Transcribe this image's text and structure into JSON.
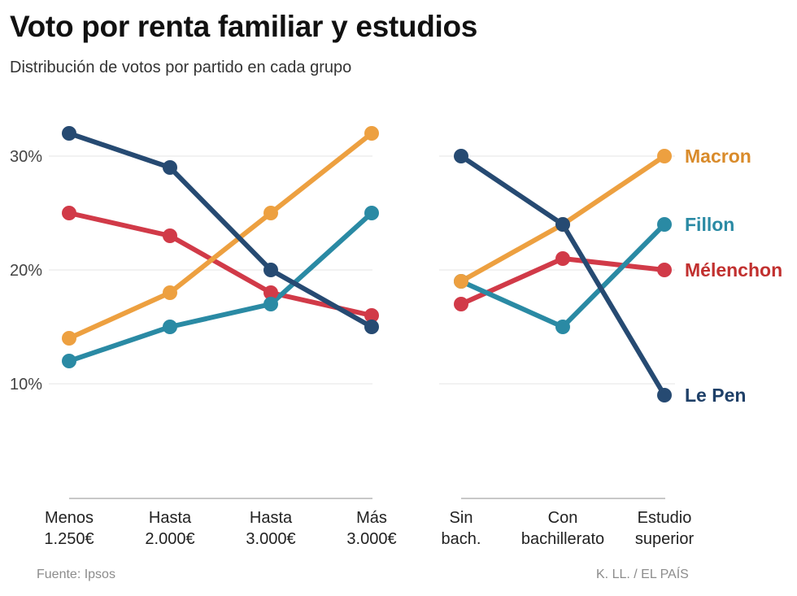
{
  "header": {
    "title": "Voto por renta familiar y estudios",
    "subtitle": "Distribución de votos por partido en cada grupo"
  },
  "footer": {
    "source": "Fuente: Ipsos",
    "credit": "K. LL. / EL PAÍS"
  },
  "chart_data": [
    {
      "type": "line",
      "title": "Renta familiar",
      "categories": [
        [
          "Menos",
          "1.250€"
        ],
        [
          "Hasta",
          "2.000€"
        ],
        [
          "Hasta",
          "3.000€"
        ],
        [
          "Más",
          "3.000€"
        ]
      ],
      "yticks": [
        10,
        20,
        30
      ],
      "ytick_labels": [
        "10%",
        "20%",
        "30%"
      ],
      "ylim": [
        0,
        33
      ],
      "grid": true,
      "series": [
        {
          "name": "Mélenchon",
          "color": "#d13a48",
          "values": [
            25,
            23,
            18,
            16
          ]
        },
        {
          "name": "Fillon",
          "color": "#2a8aa4",
          "values": [
            12,
            15,
            17,
            25
          ]
        },
        {
          "name": "Macron",
          "color": "#eda040",
          "values": [
            14,
            18,
            25,
            32
          ]
        },
        {
          "name": "Le Pen",
          "color": "#264a72",
          "values": [
            32,
            29,
            20,
            15
          ]
        }
      ]
    },
    {
      "type": "line",
      "title": "Estudios",
      "categories": [
        [
          "Sin",
          "bach."
        ],
        [
          "Con",
          "bachillerato"
        ],
        [
          "Estudio",
          "superior"
        ]
      ],
      "ylim": [
        0,
        33
      ],
      "series": [
        {
          "name": "Mélenchon",
          "color": "#d13a48",
          "values": [
            17,
            21,
            20
          ]
        },
        {
          "name": "Fillon",
          "color": "#2a8aa4",
          "values": [
            19,
            15,
            24
          ]
        },
        {
          "name": "Macron",
          "color": "#eda040",
          "values": [
            19,
            24,
            30
          ]
        },
        {
          "name": "Le Pen",
          "color": "#264a72",
          "values": [
            30,
            24,
            9
          ]
        }
      ],
      "legend": [
        {
          "name": "Macron",
          "color": "#d98b2b"
        },
        {
          "name": "Fillon",
          "color": "#2a8aa4"
        },
        {
          "name": "Mélenchon",
          "color": "#c1302f"
        },
        {
          "name": "Le Pen",
          "color": "#1f4068"
        }
      ]
    }
  ]
}
